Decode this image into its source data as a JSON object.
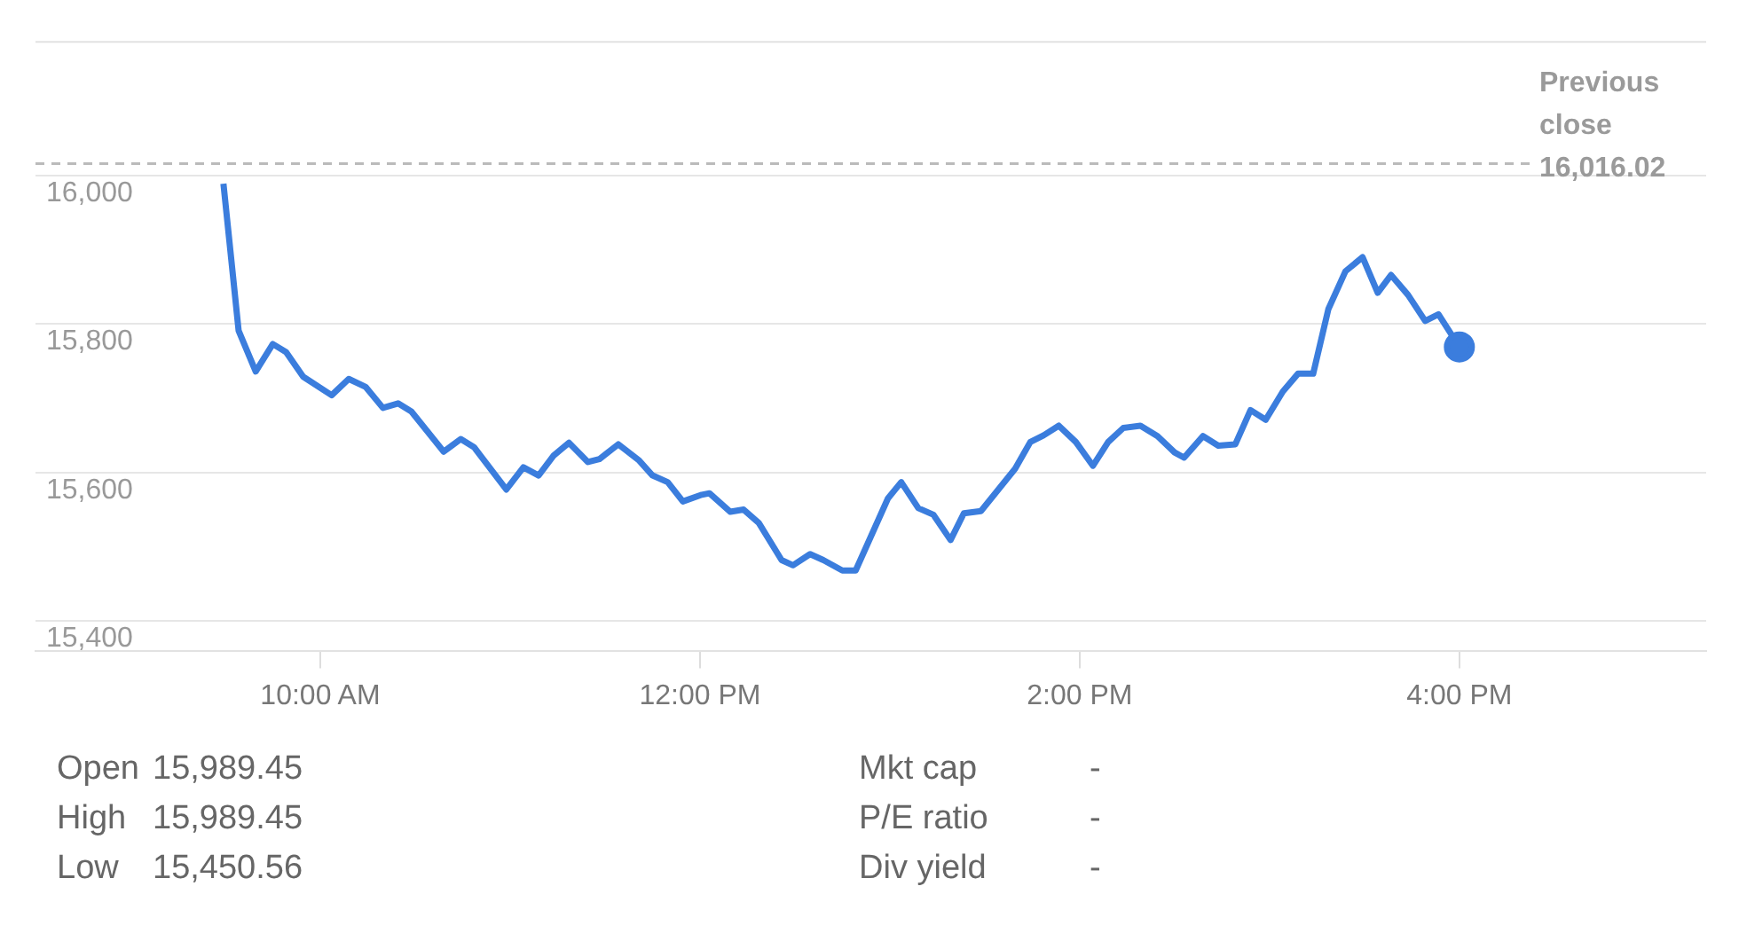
{
  "chart_data": {
    "type": "line",
    "x": [
      9.49,
      9.57,
      9.66,
      9.75,
      9.82,
      9.91,
      10.06,
      10.15,
      10.24,
      10.33,
      10.41,
      10.48,
      10.65,
      10.74,
      10.81,
      10.98,
      11.07,
      11.15,
      11.23,
      11.31,
      11.41,
      11.47,
      11.57,
      11.68,
      11.75,
      11.83,
      11.91,
      12.01,
      12.05,
      12.16,
      12.23,
      12.31,
      12.43,
      12.49,
      12.58,
      12.65,
      12.75,
      12.82,
      12.99,
      13.06,
      13.15,
      13.23,
      13.32,
      13.39,
      13.48,
      13.66,
      13.74,
      13.81,
      13.89,
      13.98,
      14.07,
      14.15,
      14.23,
      14.32,
      14.41,
      14.5,
      14.55,
      14.65,
      14.73,
      14.82,
      14.9,
      14.98,
      15.07,
      15.15,
      15.23,
      15.31,
      15.4,
      15.49,
      15.57,
      15.64,
      15.73,
      15.82,
      15.89,
      16.0
    ],
    "series": [
      {
        "color": "#3b7ddd",
        "values": [
          15989,
          15791,
          15736,
          15773,
          15762,
          15729,
          15704,
          15726,
          15715,
          15687,
          15693,
          15682,
          15628,
          15645,
          15634,
          15577,
          15607,
          15596,
          15623,
          15640,
          15614,
          15618,
          15638,
          15616,
          15596,
          15587,
          15561,
          15570,
          15572,
          15547,
          15550,
          15532,
          15482,
          15475,
          15490,
          15482,
          15468,
          15468,
          15565,
          15587,
          15552,
          15543,
          15509,
          15545,
          15548,
          15605,
          15641,
          15650,
          15663,
          15641,
          15609,
          15641,
          15660,
          15663,
          15649,
          15627,
          15620,
          15649,
          15636,
          15638,
          15684,
          15671,
          15709,
          15733,
          15733,
          15820,
          15871,
          15890,
          15842,
          15866,
          15839,
          15804,
          15813,
          15769
        ]
      }
    ],
    "xlim": [
      8.5,
      17.3
    ],
    "xticks": [
      {
        "value": 10,
        "label": "10:00 AM"
      },
      {
        "value": 12,
        "label": "12:00 PM"
      },
      {
        "value": 14,
        "label": "2:00 PM"
      },
      {
        "value": 16,
        "label": "4:00 PM"
      }
    ],
    "ylim": [
      15360,
      16180
    ],
    "yticks": [
      {
        "value": 15400,
        "label": "15,400"
      },
      {
        "value": 15600,
        "label": "15,600"
      },
      {
        "value": 15800,
        "label": "15,800"
      },
      {
        "value": 16000,
        "label": "16,000"
      }
    ],
    "grid": "y",
    "legend": false,
    "ref_lines": [
      {
        "axis": "y",
        "value": 16016.02,
        "label": "Previous close 16,016.02",
        "color": "#bbbbbb",
        "line_style": "dashed"
      }
    ],
    "annotations": [
      "Open",
      "15,989.45",
      "High",
      "15,989.45",
      "Low",
      "15,450.56",
      "Mkt cap",
      "-",
      "P/E ratio",
      "-",
      "Div yield",
      "-"
    ]
  }
}
